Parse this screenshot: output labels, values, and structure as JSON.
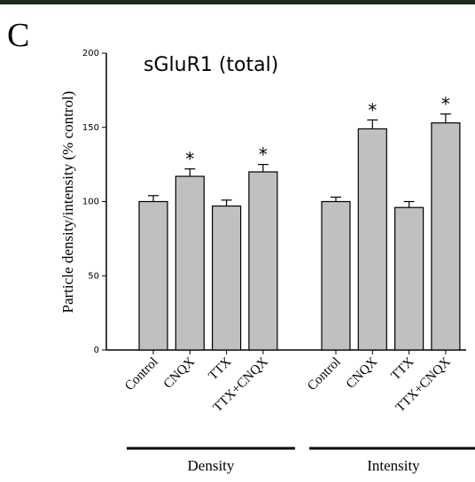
{
  "chart_data": {
    "type": "bar",
    "panel_label": "C",
    "title": "sGluR1 (total)",
    "y_label": "Particle density/intensity (% control)",
    "ylim": [
      0,
      200
    ],
    "yticks": [
      0,
      50,
      100,
      150,
      200
    ],
    "color": "#c0c0c0",
    "groups": [
      {
        "name": "Density",
        "categories": [
          "Control",
          "CNQX",
          "TTX",
          "TTX+CNQX"
        ],
        "values": [
          100,
          117,
          97,
          120
        ],
        "errors": [
          4,
          5,
          4,
          5
        ],
        "significance": [
          null,
          "*",
          null,
          "*"
        ]
      },
      {
        "name": "Intensity",
        "categories": [
          "Control",
          "CNQX",
          "TTX",
          "TTX+CNQX"
        ],
        "values": [
          100,
          149,
          96,
          153
        ],
        "errors": [
          3,
          6,
          4,
          6
        ],
        "significance": [
          null,
          "*",
          null,
          "*"
        ]
      }
    ]
  }
}
